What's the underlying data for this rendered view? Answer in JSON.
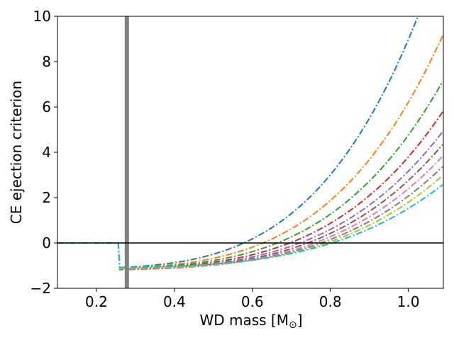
{
  "chart_data": {
    "type": "line",
    "title": "",
    "xlabel_main": "WD mass [M",
    "xlabel_sub": "⊙",
    "xlabel_end": "]",
    "ylabel": "CE ejection criterion",
    "xlim": [
      0.1,
      1.09
    ],
    "ylim": [
      -2,
      10
    ],
    "xticks": [
      0.2,
      0.4,
      0.6,
      0.8,
      1.0
    ],
    "xtick_labels": [
      "0.2",
      "0.4",
      "0.6",
      "0.8",
      "1.0"
    ],
    "yticks": [
      -2,
      0,
      2,
      4,
      6,
      8,
      10
    ],
    "ytick_labels": [
      "−2",
      "0",
      "2",
      "4",
      "6",
      "8",
      "10"
    ],
    "grid": false,
    "reference_lines": [
      {
        "orientation": "vertical",
        "x": 0.278,
        "color": "#808080",
        "name": "vertical-marker-line"
      },
      {
        "orientation": "horizontal",
        "y": 0,
        "color": "#000000",
        "name": "zero-line"
      }
    ],
    "line_style": "dash-dot",
    "series": [
      {
        "name": "series-1",
        "color": "#1f77b4",
        "start": -1.08,
        "zero_crossing": 0.578
      },
      {
        "name": "series-2",
        "color": "#ff7f0e",
        "start": -1.1,
        "zero_crossing": 0.627
      },
      {
        "name": "series-3",
        "color": "#2ca02c",
        "start": -1.12,
        "zero_crossing": 0.664
      },
      {
        "name": "series-4",
        "color": "#d62728",
        "start": -1.14,
        "zero_crossing": 0.696
      },
      {
        "name": "series-5",
        "color": "#9467bd",
        "start": -1.16,
        "zero_crossing": 0.722
      },
      {
        "name": "series-6",
        "color": "#8c564b",
        "start": -1.18,
        "zero_crossing": 0.742
      },
      {
        "name": "series-7",
        "color": "#e377c2",
        "start": -1.18,
        "zero_crossing": 0.76
      },
      {
        "name": "series-8",
        "color": "#7f7f7f",
        "start": -1.16,
        "zero_crossing": 0.776
      },
      {
        "name": "series-9",
        "color": "#bcbd22",
        "start": -1.13,
        "zero_crossing": 0.79
      },
      {
        "name": "series-10",
        "color": "#17becf",
        "start": -1.08,
        "zero_crossing": 0.804
      }
    ]
  }
}
